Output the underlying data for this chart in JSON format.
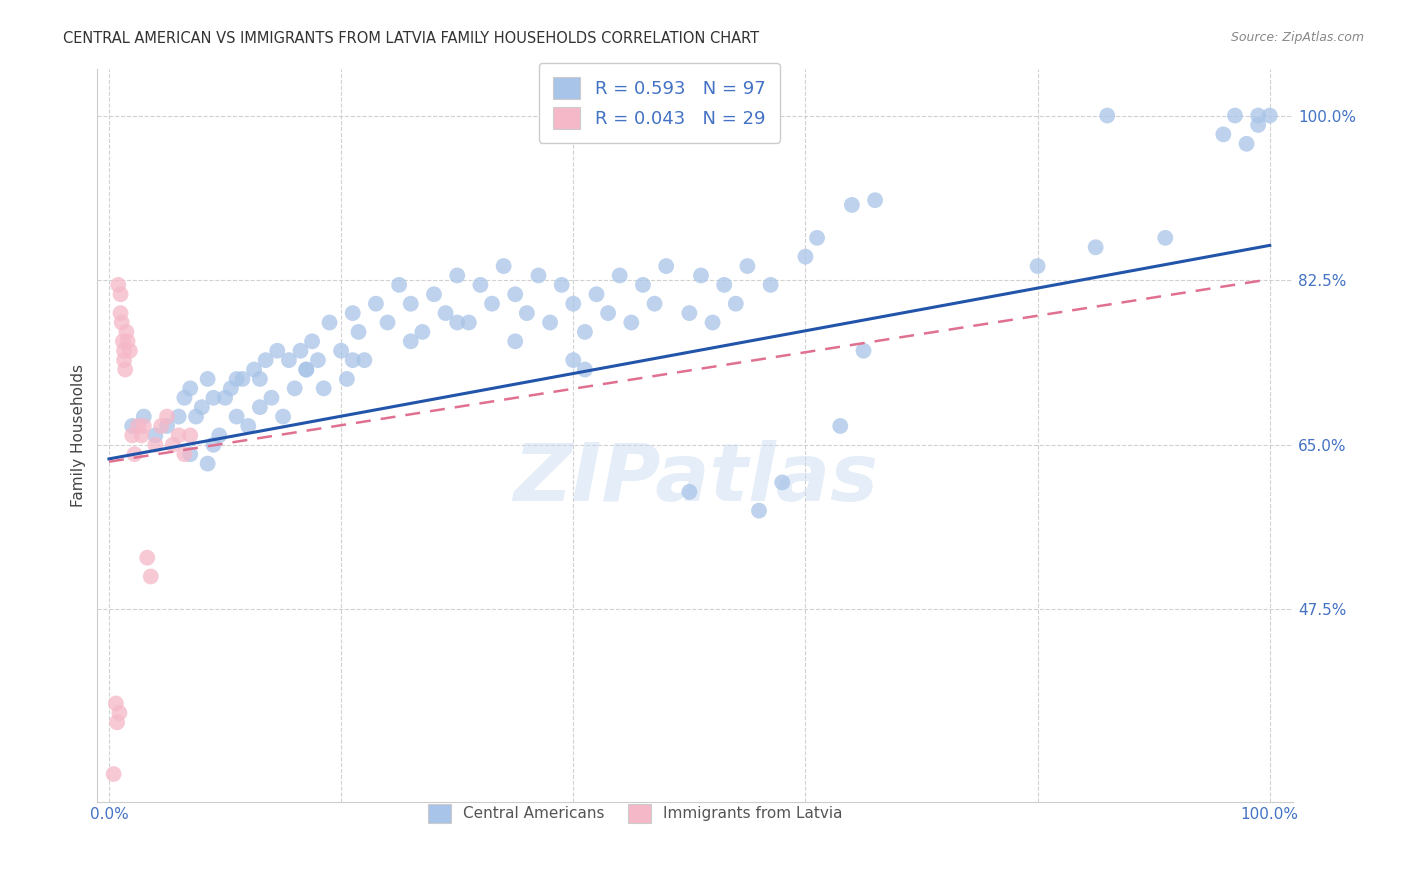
{
  "title": "CENTRAL AMERICAN VS IMMIGRANTS FROM LATVIA FAMILY HOUSEHOLDS CORRELATION CHART",
  "source": "Source: ZipAtlas.com",
  "ylabel": "Family Households",
  "ytick_labels": [
    "100.0%",
    "82.5%",
    "65.0%",
    "47.5%"
  ],
  "ytick_values": [
    1.0,
    0.825,
    0.65,
    0.475
  ],
  "xlim": [
    -0.01,
    1.02
  ],
  "ylim": [
    0.27,
    1.05
  ],
  "watermark": "ZIPatlas",
  "blue_color": "#a8c4e8",
  "blue_line_color": "#2255aa",
  "pink_color": "#f5b8c8",
  "pink_line_color": "#e07090",
  "background_color": "#ffffff",
  "title_color": "#333333",
  "axis_label_color": "#4472c4",
  "grid_color": "#cccccc",
  "blue_trend_y_start": 0.635,
  "blue_trend_y_end": 0.862,
  "pink_trend_y_start": 0.632,
  "pink_trend_y_end": 0.826,
  "blue_scatter_x": [
    0.02,
    0.03,
    0.04,
    0.05,
    0.06,
    0.065,
    0.07,
    0.075,
    0.08,
    0.085,
    0.09,
    0.095,
    0.1,
    0.105,
    0.11,
    0.115,
    0.12,
    0.125,
    0.13,
    0.135,
    0.14,
    0.145,
    0.15,
    0.155,
    0.16,
    0.165,
    0.17,
    0.175,
    0.18,
    0.185,
    0.19,
    0.2,
    0.205,
    0.21,
    0.215,
    0.22,
    0.23,
    0.24,
    0.25,
    0.26,
    0.27,
    0.28,
    0.29,
    0.3,
    0.31,
    0.32,
    0.33,
    0.34,
    0.35,
    0.36,
    0.37,
    0.38,
    0.39,
    0.4,
    0.41,
    0.42,
    0.43,
    0.44,
    0.45,
    0.46,
    0.47,
    0.48,
    0.5,
    0.51,
    0.52,
    0.53,
    0.54,
    0.55,
    0.57,
    0.6,
    0.61,
    0.64,
    0.66,
    0.8,
    0.85,
    0.86,
    0.91,
    0.96,
    0.97,
    0.98,
    0.99,
    0.99,
    1.0,
    0.07,
    0.085,
    0.09,
    0.11,
    0.13,
    0.17,
    0.21,
    0.26,
    0.3,
    0.35,
    0.4,
    0.41,
    0.5,
    0.56,
    0.58,
    0.63,
    0.65
  ],
  "blue_scatter_y": [
    0.67,
    0.68,
    0.66,
    0.67,
    0.68,
    0.7,
    0.71,
    0.68,
    0.69,
    0.72,
    0.7,
    0.66,
    0.7,
    0.71,
    0.68,
    0.72,
    0.67,
    0.73,
    0.69,
    0.74,
    0.7,
    0.75,
    0.68,
    0.74,
    0.71,
    0.75,
    0.73,
    0.76,
    0.74,
    0.71,
    0.78,
    0.75,
    0.72,
    0.79,
    0.77,
    0.74,
    0.8,
    0.78,
    0.82,
    0.8,
    0.77,
    0.81,
    0.79,
    0.83,
    0.78,
    0.82,
    0.8,
    0.84,
    0.81,
    0.79,
    0.83,
    0.78,
    0.82,
    0.8,
    0.77,
    0.81,
    0.79,
    0.83,
    0.78,
    0.82,
    0.8,
    0.84,
    0.79,
    0.83,
    0.78,
    0.82,
    0.8,
    0.84,
    0.82,
    0.85,
    0.87,
    0.905,
    0.91,
    0.84,
    0.86,
    1.0,
    0.87,
    0.98,
    1.0,
    0.97,
    1.0,
    0.99,
    1.0,
    0.64,
    0.63,
    0.65,
    0.72,
    0.72,
    0.73,
    0.74,
    0.76,
    0.78,
    0.76,
    0.74,
    0.73,
    0.6,
    0.58,
    0.61,
    0.67,
    0.75
  ],
  "pink_scatter_x": [
    0.004,
    0.006,
    0.007,
    0.008,
    0.009,
    0.01,
    0.01,
    0.011,
    0.012,
    0.013,
    0.013,
    0.014,
    0.015,
    0.016,
    0.018,
    0.02,
    0.022,
    0.025,
    0.028,
    0.03,
    0.033,
    0.036,
    0.04,
    0.045,
    0.05,
    0.055,
    0.06,
    0.065,
    0.07
  ],
  "pink_scatter_y": [
    0.3,
    0.375,
    0.355,
    0.82,
    0.365,
    0.81,
    0.79,
    0.78,
    0.76,
    0.74,
    0.75,
    0.73,
    0.77,
    0.76,
    0.75,
    0.66,
    0.64,
    0.67,
    0.66,
    0.67,
    0.53,
    0.51,
    0.65,
    0.67,
    0.68,
    0.65,
    0.66,
    0.64,
    0.66
  ]
}
